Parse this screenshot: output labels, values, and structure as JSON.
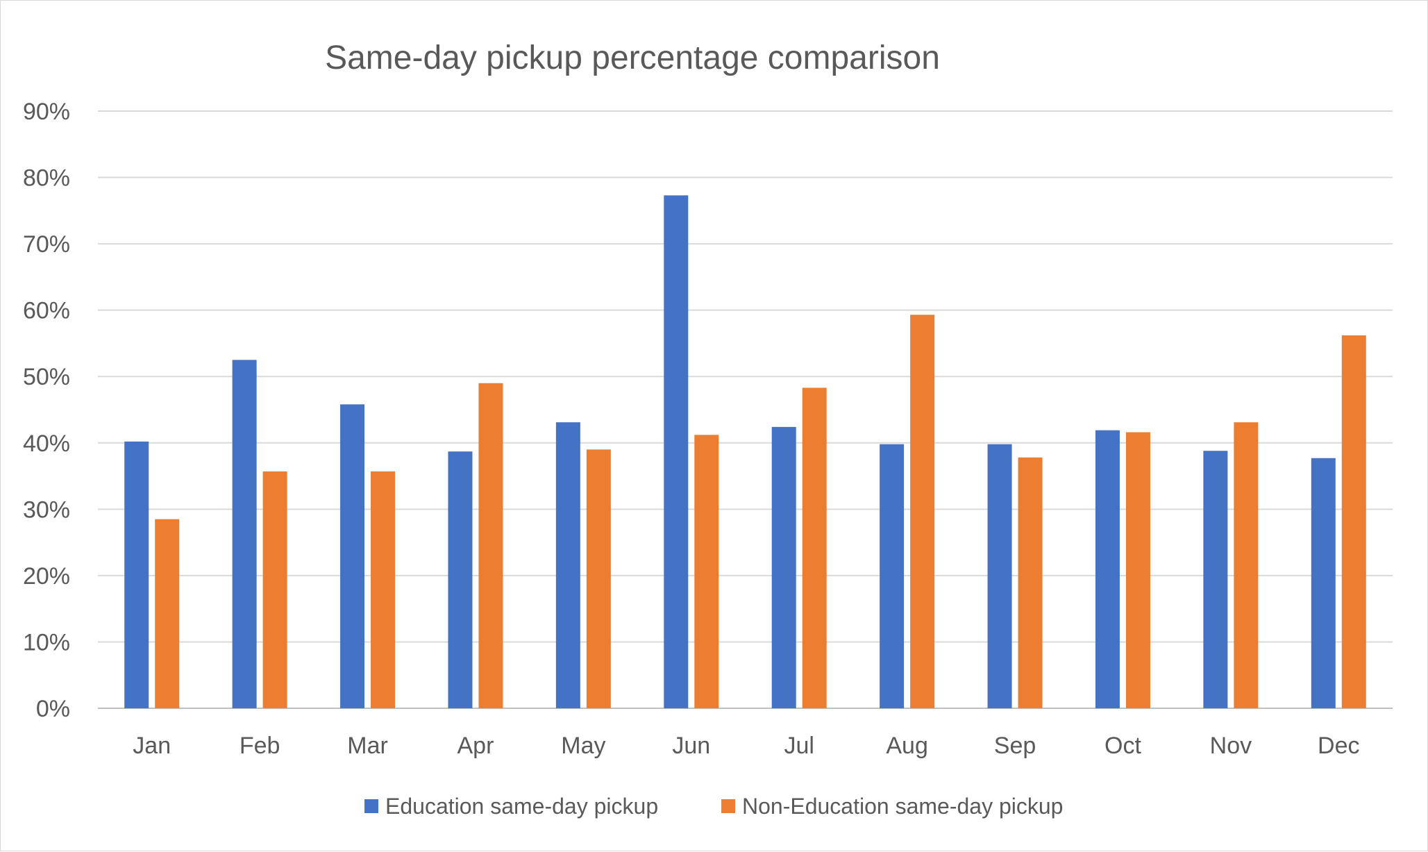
{
  "chart_data": {
    "type": "bar",
    "title": "Same-day pickup percentage comparison",
    "xlabel": "",
    "ylabel": "",
    "ylim": [
      0,
      90
    ],
    "yticks": [
      "0%",
      "10%",
      "20%",
      "30%",
      "40%",
      "50%",
      "60%",
      "70%",
      "80%",
      "90%"
    ],
    "ytick_values": [
      0,
      10,
      20,
      30,
      40,
      50,
      60,
      70,
      80,
      90
    ],
    "categories": [
      "Jan",
      "Feb",
      "Mar",
      "Apr",
      "May",
      "Jun",
      "Jul",
      "Aug",
      "Sep",
      "Oct",
      "Nov",
      "Dec"
    ],
    "series": [
      {
        "name": "Education same-day pickup",
        "color": "#4472C4",
        "values": [
          40.2,
          52.5,
          45.8,
          38.7,
          43.1,
          77.3,
          42.4,
          39.8,
          39.8,
          41.9,
          38.8,
          37.7
        ]
      },
      {
        "name": "Non-Education same-day pickup",
        "color": "#ED7D31",
        "values": [
          28.5,
          35.7,
          35.7,
          49.0,
          39.0,
          41.2,
          48.3,
          59.3,
          37.8,
          41.6,
          43.1,
          56.2
        ]
      }
    ],
    "grid": true,
    "legend_position": "bottom"
  }
}
